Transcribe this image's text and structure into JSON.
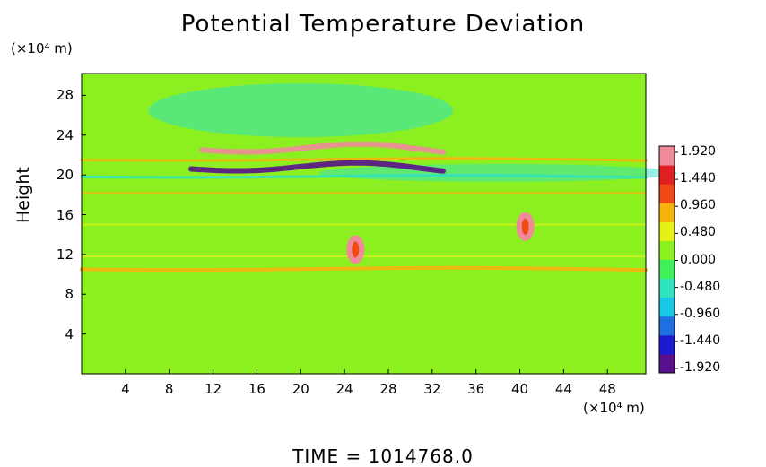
{
  "chart_data": {
    "type": "heatmap",
    "title": "Potential Temperature Deviation",
    "ylabel": "Height",
    "y_unit": "(×10⁴ m)",
    "x_unit": "(×10⁴ m)",
    "xlim": [
      0,
      51.5
    ],
    "ylim": [
      0,
      30.2
    ],
    "x_ticks": [
      "4",
      "8",
      "12",
      "16",
      "20",
      "24",
      "28",
      "32",
      "36",
      "40",
      "44",
      "48"
    ],
    "y_ticks": [
      "4",
      "8",
      "12",
      "16",
      "20",
      "24",
      "28"
    ],
    "colorbar": {
      "ticks": [
        "1.920",
        "1.440",
        "0.960",
        "0.480",
        "0.000",
        "-0.480",
        "-0.960",
        "-1.440",
        "-1.920"
      ],
      "range": [
        -1.92,
        1.92
      ],
      "colors": [
        "#5a0f8c",
        "#1a1ad0",
        "#1f6fe0",
        "#17c7e6",
        "#2fe2c0",
        "#3ef05a",
        "#8cf020",
        "#e6ef16",
        "#f6b30c",
        "#f04a14",
        "#e02020",
        "#f08a9a"
      ]
    },
    "footer": "TIME = 1014768.0",
    "features": [
      {
        "name": "wave-band-positive",
        "x_range": [
          11,
          33
        ],
        "y_center": 22.5,
        "value": 1.6
      },
      {
        "name": "wave-band-negative",
        "x_range": [
          10,
          33
        ],
        "y_center": 20.6,
        "value": -1.7
      },
      {
        "name": "tropopause-layer-warm",
        "x_range": [
          0,
          51.5
        ],
        "y_center": 21.5,
        "value": 0.9
      },
      {
        "name": "tropopause-layer-cool",
        "x_range": [
          0,
          51.5
        ],
        "y_center": 19.8,
        "value": -0.6
      },
      {
        "name": "plume-1",
        "x_center": 40.5,
        "y_center": 14.8,
        "value": 1.9
      },
      {
        "name": "plume-2",
        "x_center": 25,
        "y_center": 12.5,
        "value": 1.8
      },
      {
        "name": "low-layer-warm",
        "x_range": [
          0,
          51.5
        ],
        "y_center": 10.5,
        "value": 0.8
      },
      {
        "name": "upper-cool-region",
        "x_center": 20,
        "y_center": 26.5,
        "value": -0.4
      }
    ]
  }
}
